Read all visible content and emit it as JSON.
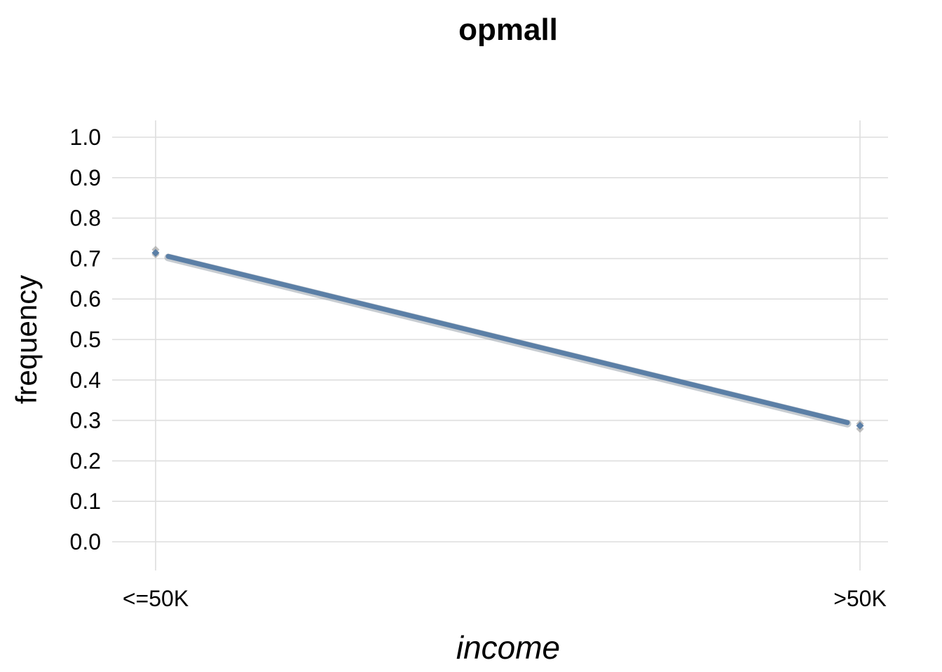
{
  "chart_data": {
    "type": "line",
    "title": "opmall",
    "xlabel": "income",
    "ylabel": "frequency",
    "categories": [
      "<=50K",
      ">50K"
    ],
    "ylim": [
      0.0,
      1.0
    ],
    "y_ticks": [
      "0.0",
      "0.1",
      "0.2",
      "0.3",
      "0.4",
      "0.5",
      "0.6",
      "0.7",
      "0.8",
      "0.9",
      "1.0"
    ],
    "series": [
      {
        "values": [
          0.713,
          0.287
        ],
        "points": [
          [
            0.722,
            0.71,
            0.714
          ],
          [
            0.292,
            0.279,
            0.287
          ]
        ]
      }
    ],
    "grid": true,
    "legend": "none",
    "colors": {
      "line": "#5b7fa6",
      "line_shadow": "#9aa3ad",
      "point": "#5b7fa6",
      "point_ghost": "#a9a9a9",
      "grid": "#dedede"
    }
  }
}
